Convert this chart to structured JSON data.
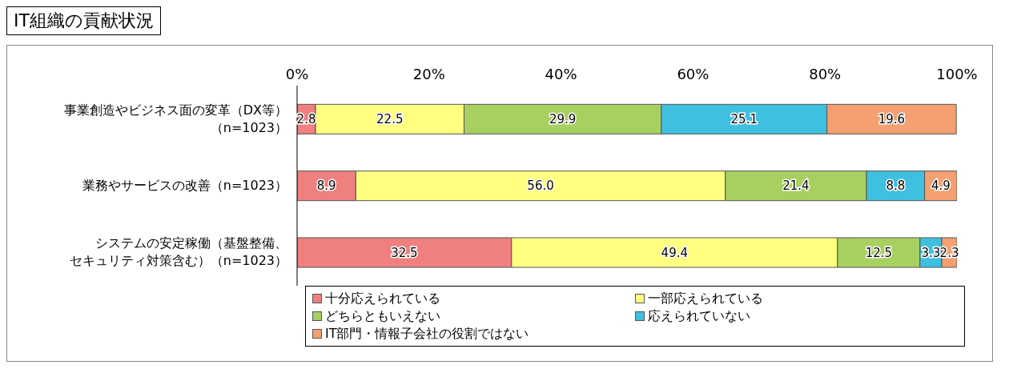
{
  "chart_data": {
    "type": "bar",
    "title": "IT組織の貢献状況",
    "orientation": "horizontal",
    "stacked": true,
    "categories": [
      "事業創造やビジネス面の変革（DX等）（n=1023）",
      "業務やサービスの改善（n=1023）",
      "システムの安定稼働（基盤整備、セキュリティ対策含む）（n=1023）"
    ],
    "series": [
      {
        "name": "十分応えられている",
        "color": "#f08080",
        "values": [
          2.8,
          8.9,
          32.5
        ],
        "value_labels": [
          "2.8",
          "8.9",
          "32.5"
        ]
      },
      {
        "name": "一部応えられている",
        "color": "#ffff80",
        "values": [
          22.5,
          56.0,
          49.4
        ],
        "value_labels": [
          "22.5",
          "56.0",
          "49.4"
        ]
      },
      {
        "name": "どちらともいえない",
        "color": "#a8d060",
        "values": [
          29.9,
          21.4,
          12.5
        ],
        "value_labels": [
          "29.9",
          "21.4",
          "12.5"
        ]
      },
      {
        "name": "応えられていない",
        "color": "#40c0e0",
        "values": [
          25.1,
          8.8,
          3.3
        ],
        "value_labels": [
          "25.1",
          "8.8",
          "3.3"
        ]
      },
      {
        "name": "IT部門・情報子会社の役割ではない",
        "color": "#f4a070",
        "values": [
          19.6,
          4.9,
          2.3
        ],
        "value_labels": [
          "19.6",
          "4.9",
          "2.3"
        ]
      }
    ],
    "xlim": [
      0,
      100
    ],
    "xticks": [
      {
        "value": 0,
        "label": "0%"
      },
      {
        "value": 20,
        "label": "20%"
      },
      {
        "value": 40,
        "label": "40%"
      },
      {
        "value": 60,
        "label": "60%"
      },
      {
        "value": 80,
        "label": "80%"
      },
      {
        "value": 100,
        "label": "100%"
      }
    ],
    "grid": false,
    "legend": "bottom"
  }
}
